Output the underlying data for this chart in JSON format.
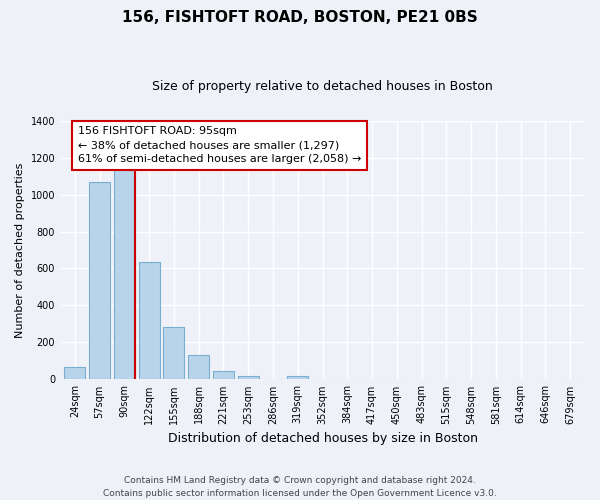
{
  "title": "156, FISHTOFT ROAD, BOSTON, PE21 0BS",
  "subtitle": "Size of property relative to detached houses in Boston",
  "xlabel": "Distribution of detached houses by size in Boston",
  "ylabel": "Number of detached properties",
  "bar_labels": [
    "24sqm",
    "57sqm",
    "90sqm",
    "122sqm",
    "155sqm",
    "188sqm",
    "221sqm",
    "253sqm",
    "286sqm",
    "319sqm",
    "352sqm",
    "384sqm",
    "417sqm",
    "450sqm",
    "483sqm",
    "515sqm",
    "548sqm",
    "581sqm",
    "614sqm",
    "646sqm",
    "679sqm"
  ],
  "bar_values": [
    65,
    1070,
    1160,
    635,
    285,
    130,
    48,
    20,
    0,
    20,
    0,
    0,
    0,
    0,
    0,
    0,
    0,
    0,
    0,
    0,
    0
  ],
  "bar_color": "#b8d4ea",
  "bar_edge_color": "#7aaed0",
  "vline_color": "#cc0000",
  "vline_x": 2.425,
  "annotation_line1": "156 FISHTOFT ROAD: 95sqm",
  "annotation_line2": "← 38% of detached houses are smaller (1,297)",
  "annotation_line3": "61% of semi-detached houses are larger (2,058) →",
  "annotation_box_color": "#ffffff",
  "annotation_box_edge": "#cc0000",
  "ylim": [
    0,
    1400
  ],
  "yticks": [
    0,
    200,
    400,
    600,
    800,
    1000,
    1200,
    1400
  ],
  "footer_line1": "Contains HM Land Registry data © Crown copyright and database right 2024.",
  "footer_line2": "Contains public sector information licensed under the Open Government Licence v3.0.",
  "bg_color": "#eef2f8",
  "plot_bg_color": "#eef2f8",
  "grid_color": "#ffffff",
  "title_fontsize": 11,
  "subtitle_fontsize": 9,
  "xlabel_fontsize": 9,
  "ylabel_fontsize": 8,
  "tick_fontsize": 7,
  "footer_fontsize": 6.5,
  "annotation_fontsize": 8
}
